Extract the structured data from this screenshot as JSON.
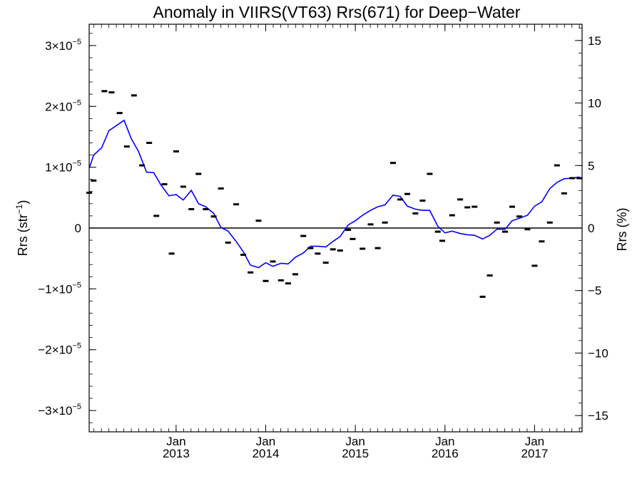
{
  "chart_data": {
    "type": "scatter",
    "title": "Anomaly in VIIRS(VT63) Rrs(671) for Deep−Water",
    "ylabel_left": {
      "main": "Rrs (str",
      "sup": "−1",
      "close": ")"
    },
    "ylabel_right": "Rrs (%)",
    "xlim": [
      2012.03,
      2017.53
    ],
    "ylim_left": [
      -3.35e-05,
      3.35e-05
    ],
    "ylim_right": [
      -16.3,
      16.3
    ],
    "grid": false,
    "zero_line": true,
    "x_ticks": [
      {
        "x": 2013.0,
        "month": "Jan",
        "year": "2013"
      },
      {
        "x": 2014.0,
        "month": "Jan",
        "year": "2014"
      },
      {
        "x": 2015.0,
        "month": "Jan",
        "year": "2015"
      },
      {
        "x": 2016.0,
        "month": "Jan",
        "year": "2016"
      },
      {
        "x": 2017.0,
        "month": "Jan",
        "year": "2017"
      }
    ],
    "y_ticks_left": [
      {
        "value": 3e-05,
        "mant": "3×10",
        "exp": "−5"
      },
      {
        "value": 2e-05,
        "mant": "2×10",
        "exp": "−5"
      },
      {
        "value": 1e-05,
        "mant": "1×10",
        "exp": "−5"
      },
      {
        "value": 0,
        "text": "0"
      },
      {
        "value": -1e-05,
        "mant": "−1×10",
        "exp": "−5"
      },
      {
        "value": -2e-05,
        "mant": "−2×10",
        "exp": "−5"
      },
      {
        "value": -3e-05,
        "mant": "−3×10",
        "exp": "−5"
      }
    ],
    "y_ticks_right": [
      {
        "value": 15,
        "text": "15"
      },
      {
        "value": 10,
        "text": "10"
      },
      {
        "value": 5,
        "text": "5"
      },
      {
        "value": 0,
        "text": "0"
      },
      {
        "value": -5,
        "text": "−5"
      },
      {
        "value": -10,
        "text": "−10"
      },
      {
        "value": -15,
        "text": "−15"
      }
    ],
    "scatter_points": [
      [
        2012.03,
        5.8e-06
      ],
      [
        2012.08,
        7.8e-06
      ],
      [
        2012.2,
        2.25e-05
      ],
      [
        2012.28,
        2.23e-05
      ],
      [
        2012.37,
        1.89e-05
      ],
      [
        2012.45,
        1.34e-05
      ],
      [
        2012.53,
        2.18e-05
      ],
      [
        2012.62,
        1.03e-05
      ],
      [
        2012.7,
        1.4e-05
      ],
      [
        2012.78,
        2e-06
      ],
      [
        2012.87,
        7.2e-06
      ],
      [
        2012.95,
        -4.2e-06
      ],
      [
        2013.0,
        1.26e-05
      ],
      [
        2013.08,
        6.8e-06
      ],
      [
        2013.17,
        3.1e-06
      ],
      [
        2013.25,
        8.9e-06
      ],
      [
        2013.33,
        3.1e-06
      ],
      [
        2013.42,
        1.9e-06
      ],
      [
        2013.5,
        6.5e-06
      ],
      [
        2013.58,
        -2.4e-06
      ],
      [
        2013.67,
        3.9e-06
      ],
      [
        2013.75,
        -4.4e-06
      ],
      [
        2013.83,
        -7.3e-06
      ],
      [
        2013.92,
        1.2e-06
      ],
      [
        2014.0,
        -8.7e-06
      ],
      [
        2014.08,
        -5.5e-06
      ],
      [
        2014.17,
        -8.6e-06
      ],
      [
        2014.25,
        -9.1e-06
      ],
      [
        2014.33,
        -7.6e-06
      ],
      [
        2014.42,
        -1.3e-06
      ],
      [
        2014.5,
        -3.3e-06
      ],
      [
        2014.58,
        -4.2e-06
      ],
      [
        2014.67,
        -5.7e-06
      ],
      [
        2014.75,
        -3.5e-06
      ],
      [
        2014.83,
        -3.7e-06
      ],
      [
        2014.92,
        -3e-07
      ],
      [
        2014.97,
        -1.8e-06
      ],
      [
        2015.08,
        -3.4e-06
      ],
      [
        2015.17,
        6e-07
      ],
      [
        2015.25,
        -3.3e-06
      ],
      [
        2015.33,
        9e-07
      ],
      [
        2015.42,
        1.07e-05
      ],
      [
        2015.5,
        4.7e-06
      ],
      [
        2015.58,
        5.6e-06
      ],
      [
        2015.67,
        2.4e-06
      ],
      [
        2015.75,
        4.5e-06
      ],
      [
        2015.83,
        8.9e-06
      ],
      [
        2015.92,
        -6e-07
      ],
      [
        2015.97,
        -2.1e-06
      ],
      [
        2016.08,
        2.1e-06
      ],
      [
        2016.17,
        4.7e-06
      ],
      [
        2016.25,
        3.4e-06
      ],
      [
        2016.33,
        3.5e-06
      ],
      [
        2016.42,
        -1.13e-05
      ],
      [
        2016.5,
        -7.8e-06
      ],
      [
        2016.58,
        9e-07
      ],
      [
        2016.67,
        -6e-07
      ],
      [
        2016.75,
        3.5e-06
      ],
      [
        2016.83,
        1.9e-06
      ],
      [
        2016.92,
        -2e-07
      ],
      [
        2017.0,
        -6.2e-06
      ],
      [
        2017.08,
        -2.2e-06
      ],
      [
        2017.17,
        9e-07
      ],
      [
        2017.25,
        1.03e-05
      ],
      [
        2017.33,
        5.7e-06
      ],
      [
        2017.42,
        8.2e-06
      ],
      [
        2017.5,
        8.2e-06
      ]
    ],
    "line_series": [
      [
        2012.03,
        9.8e-06
      ],
      [
        2012.08,
        1.2e-05
      ],
      [
        2012.17,
        1.32e-05
      ],
      [
        2012.25,
        1.6e-05
      ],
      [
        2012.33,
        1.68e-05
      ],
      [
        2012.42,
        1.77e-05
      ],
      [
        2012.5,
        1.47e-05
      ],
      [
        2012.58,
        1.26e-05
      ],
      [
        2012.67,
        9.2e-06
      ],
      [
        2012.75,
        9.1e-06
      ],
      [
        2012.83,
        7.1e-06
      ],
      [
        2012.92,
        5.3e-06
      ],
      [
        2013.0,
        5.5e-06
      ],
      [
        2013.08,
        4.6e-06
      ],
      [
        2013.17,
        6.2e-06
      ],
      [
        2013.25,
        4e-06
      ],
      [
        2013.33,
        3.5e-06
      ],
      [
        2013.42,
        2.4e-06
      ],
      [
        2013.5,
        1e-07
      ],
      [
        2013.58,
        -5e-07
      ],
      [
        2013.67,
        -2.2e-06
      ],
      [
        2013.75,
        -3.9e-06
      ],
      [
        2013.83,
        -6.1e-06
      ],
      [
        2013.92,
        -6.5e-06
      ],
      [
        2014.0,
        -5.7e-06
      ],
      [
        2014.08,
        -6.3e-06
      ],
      [
        2014.17,
        -5.8e-06
      ],
      [
        2014.25,
        -5.9e-06
      ],
      [
        2014.33,
        -4.8e-06
      ],
      [
        2014.42,
        -4.1e-06
      ],
      [
        2014.5,
        -3e-06
      ],
      [
        2014.58,
        -3e-06
      ],
      [
        2014.67,
        -3.1e-06
      ],
      [
        2014.75,
        -2.2e-06
      ],
      [
        2014.83,
        -1.4e-06
      ],
      [
        2014.92,
        5e-07
      ],
      [
        2015.0,
        1.2e-06
      ],
      [
        2015.08,
        2.1e-06
      ],
      [
        2015.17,
        2.9e-06
      ],
      [
        2015.25,
        3.5e-06
      ],
      [
        2015.33,
        3.8e-06
      ],
      [
        2015.42,
        5.4e-06
      ],
      [
        2015.5,
        5.2e-06
      ],
      [
        2015.58,
        3.6e-06
      ],
      [
        2015.67,
        3.1e-06
      ],
      [
        2015.75,
        2.9e-06
      ],
      [
        2015.83,
        2.9e-06
      ],
      [
        2015.92,
        3e-07
      ],
      [
        2016.0,
        -8e-07
      ],
      [
        2016.08,
        -5e-07
      ],
      [
        2016.17,
        -9e-07
      ],
      [
        2016.25,
        -1.1e-06
      ],
      [
        2016.33,
        -1.2e-06
      ],
      [
        2016.42,
        -1.8e-06
      ],
      [
        2016.5,
        -1.2e-06
      ],
      [
        2016.58,
        -2e-07
      ],
      [
        2016.67,
        -2e-07
      ],
      [
        2016.75,
        1.2e-06
      ],
      [
        2016.83,
        1.6e-06
      ],
      [
        2016.92,
        2.1e-06
      ],
      [
        2017.0,
        3.6e-06
      ],
      [
        2017.08,
        4.3e-06
      ],
      [
        2017.17,
        6.5e-06
      ],
      [
        2017.25,
        7.5e-06
      ],
      [
        2017.33,
        8.1e-06
      ],
      [
        2017.42,
        8.2e-06
      ],
      [
        2017.5,
        8.4e-06
      ]
    ],
    "colors": {
      "line": "#0000ff",
      "points": "#000000",
      "zero_line": "#000000",
      "axes": "#000000"
    }
  }
}
